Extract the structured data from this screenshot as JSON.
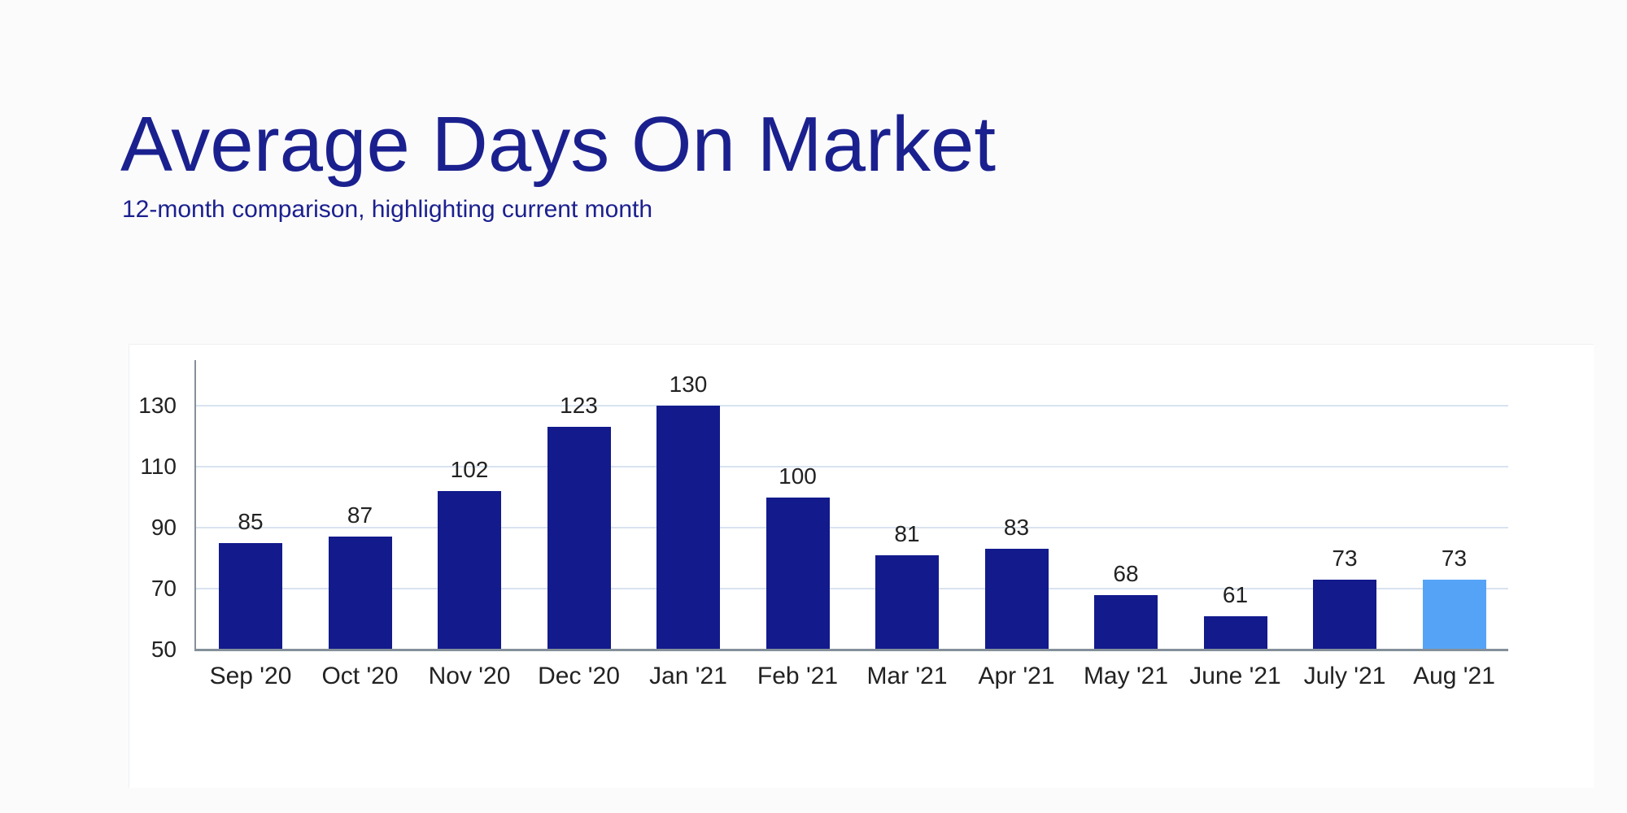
{
  "header": {
    "title": "Average Days On Market",
    "subtitle": "12-month comparison, highlighting current month"
  },
  "colors": {
    "title": "#1b208f",
    "bar": "#121a8c",
    "bar_highlight": "#55a3f7",
    "grid": "#d9e3f0",
    "axis": "#84909a",
    "label": "#222222",
    "panel_background": "#ffffff",
    "page_background": "#fbfbfb"
  },
  "chart_data": {
    "type": "bar",
    "title": "Average Days On Market",
    "subtitle": "12-month comparison, highlighting current month",
    "categories": [
      "Sep '20",
      "Oct '20",
      "Nov '20",
      "Dec '20",
      "Jan '21",
      "Feb '21",
      "Mar '21",
      "Apr '21",
      "May '21",
      "June '21",
      "July '21",
      "Aug '21"
    ],
    "values": [
      85,
      87,
      102,
      123,
      130,
      100,
      81,
      83,
      68,
      61,
      73,
      73
    ],
    "highlight_index": 11,
    "highlighted_category": "Aug '21",
    "value_labels_shown": true,
    "xlabel": "",
    "ylabel": "",
    "y_ticks": [
      130,
      110,
      90,
      70,
      50
    ],
    "ylim": [
      50,
      145
    ],
    "grid": "horizontal",
    "legend_position": "none",
    "bar_color": "#121a8c",
    "highlight_color": "#55a3f7"
  }
}
